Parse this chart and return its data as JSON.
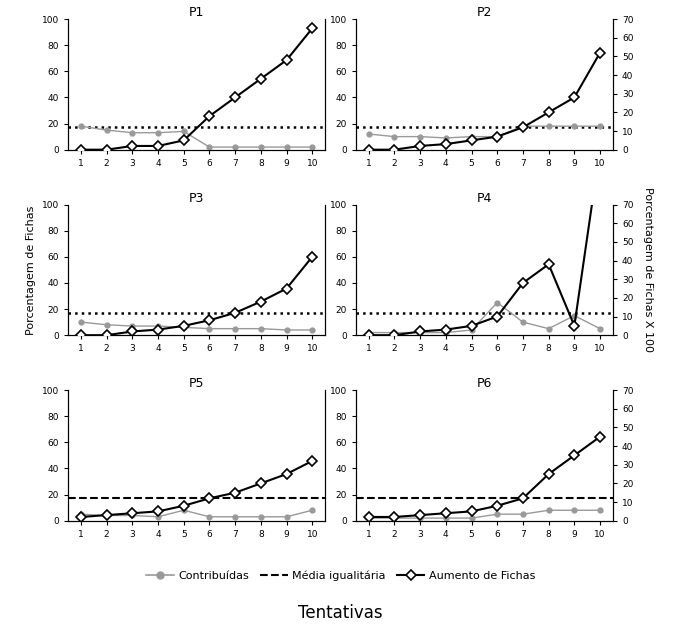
{
  "trials": [
    1,
    2,
    3,
    4,
    5,
    6,
    7,
    8,
    9,
    10
  ],
  "participants": [
    "P1",
    "P2",
    "P3",
    "P4",
    "P5",
    "P6"
  ],
  "contribuidas": {
    "P1": [
      18,
      15,
      13,
      13,
      14,
      2,
      2,
      2,
      2,
      2
    ],
    "P2": [
      12,
      10,
      10,
      9,
      10,
      10,
      18,
      18,
      18,
      18
    ],
    "P3": [
      10,
      8,
      7,
      7,
      6,
      5,
      5,
      5,
      4,
      4
    ],
    "P4": [
      2,
      2,
      2,
      2,
      4,
      25,
      10,
      5,
      15,
      5
    ],
    "P5": [
      5,
      4,
      4,
      3,
      8,
      3,
      3,
      3,
      3,
      8
    ],
    "P6": [
      2,
      2,
      2,
      2,
      2,
      5,
      5,
      8,
      8,
      8
    ]
  },
  "aumento": {
    "P1": [
      0,
      0,
      2,
      2,
      5,
      18,
      28,
      38,
      48,
      65
    ],
    "P2": [
      0,
      0,
      2,
      3,
      5,
      7,
      12,
      20,
      28,
      52
    ],
    "P3": [
      0,
      0,
      2,
      3,
      5,
      8,
      12,
      18,
      25,
      42
    ],
    "P4": [
      0,
      0,
      2,
      3,
      5,
      10,
      28,
      38,
      5,
      100
    ],
    "P5": [
      2,
      3,
      4,
      5,
      8,
      12,
      15,
      20,
      25,
      32
    ],
    "P6": [
      2,
      2,
      3,
      4,
      5,
      8,
      12,
      25,
      35,
      45
    ]
  },
  "hline_dotted": [
    "P1",
    "P2",
    "P3",
    "P4"
  ],
  "hline_dashed": [
    "P5",
    "P6"
  ],
  "hline_value": 17,
  "ylim_left": [
    0,
    100
  ],
  "ylim_right": [
    0,
    70
  ],
  "yticks_left": [
    0,
    20,
    40,
    60,
    80,
    100
  ],
  "yticks_right": [
    0,
    10,
    20,
    30,
    40,
    50,
    60,
    70
  ],
  "color_contribuidas": "#999999",
  "color_aumento": "#000000",
  "xlabel": "Tentativas",
  "ylabel_left": "Porcentagem de Fichas",
  "ylabel_right": "Porcentagem de Fichas X 100",
  "legend_contribuidas": "Contribuídas",
  "legend_media": "Média igualitária",
  "legend_aumento": "Aumento de Fichas",
  "layout": [
    [
      "P1",
      0,
      0
    ],
    [
      "P2",
      0,
      1
    ],
    [
      "P3",
      1,
      0
    ],
    [
      "P4",
      1,
      1
    ],
    [
      "P5",
      2,
      0
    ],
    [
      "P6",
      2,
      1
    ]
  ]
}
